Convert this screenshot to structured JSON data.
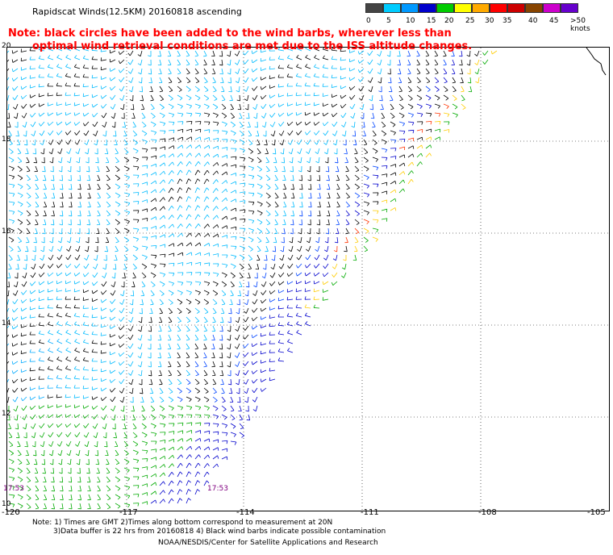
{
  "title": "Rapidscat Winds(12.5KM) 20160818 ascending",
  "note": {
    "line1": "Note: black circles have been added to the wind barbs, wherever less than",
    "line2": "optimal wind retrieval conditions are met due to the ISS altitude changes."
  },
  "legend": {
    "colors": [
      "#000000",
      "#00aaff",
      "#0077ff",
      "#0000cc",
      "#00aa00",
      "#ffff00",
      "#ffaa00",
      "#ff0000",
      "#cc0000",
      "#aa5500",
      "#cc00cc",
      "#6600cc"
    ],
    "labels": [
      "0",
      "5",
      "10",
      "15",
      "20",
      "25",
      "30",
      "35",
      "40",
      "45",
      ">50 knots"
    ]
  },
  "axes": {
    "lat_labels": [
      "20",
      "18",
      "16",
      "14",
      "12",
      "10"
    ],
    "lon_labels": [
      "-120",
      "-117",
      "-114",
      "-111",
      "-108",
      "-105"
    ]
  },
  "time_labels": [
    "17:53",
    "17:53"
  ],
  "footnotes": {
    "line1": "Note: 1) Times are GMT 2)Times along bottom correspond to measurement at 20N",
    "line2": "3)Data buffer is 22 hrs from 20160818 4) Black wind barbs indicate possible contamination",
    "line3": "NOAA/NESDIS/Center for Satellite Applications and Research"
  }
}
